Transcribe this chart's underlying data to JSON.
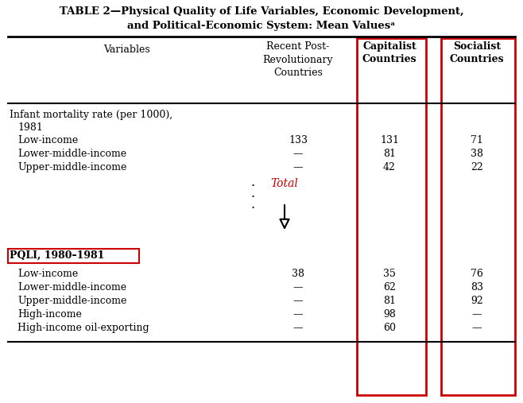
{
  "title_line1": "TABLE 2—Physical Quality of Life Variables, Economic Development,",
  "title_line2": "and Political-Economic System: Mean Valuesᵃ",
  "col_headers_var": "Variables",
  "col_headers_recent": "Recent Post-\nRevolutionary\nCountries",
  "col_headers_cap": "Capitalist\nCountries",
  "col_headers_soc": "Socialist\nCountries",
  "section1_label1": "Infant mortality rate (per 1000),",
  "section1_label2": "  1981",
  "section1_rows": [
    [
      "Low-income",
      "133",
      "131",
      "71"
    ],
    [
      "Lower-middle-income",
      "—",
      "81",
      "38"
    ],
    [
      "Upper-middle-income",
      "—",
      "42",
      "22"
    ]
  ],
  "total_label": "Total",
  "section2_header": "PQLI, 1980–1981",
  "section2_rows": [
    [
      "Low-income",
      "38",
      "35",
      "76"
    ],
    [
      "Lower-middle-income",
      "—",
      "62",
      "83"
    ],
    [
      "Upper-middle-income",
      "—",
      "81",
      "92"
    ],
    [
      "High-income",
      "—",
      "98",
      "—"
    ],
    [
      "High-income oil-exporting",
      "—",
      "60",
      "—"
    ]
  ],
  "red_color": "#CC0000",
  "bg_color": "#FFFFFF",
  "text_color": "#000000"
}
